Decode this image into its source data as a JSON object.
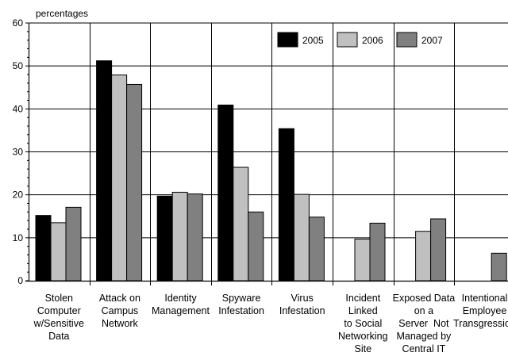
{
  "chart_data": {
    "type": "bar",
    "ylabel": "percentages",
    "ylim": [
      0,
      60
    ],
    "yticks": [
      "0",
      "10",
      "20",
      "30",
      "40",
      "50",
      "60"
    ],
    "legend_position": "top-right",
    "grid": "horizontal",
    "categories": [
      [
        "Stolen",
        "Computer",
        "w/Sensitive",
        "Data"
      ],
      [
        "Attack on",
        "Campus",
        "Network"
      ],
      [
        "Identity",
        "Management"
      ],
      [
        "Spyware",
        "Infestation"
      ],
      [
        "Virus",
        "Infestation"
      ],
      [
        "Incident",
        "Linked",
        "to Social",
        "Networking",
        "Site"
      ],
      [
        "Exposed Data",
        "on a",
        "Server  Not",
        "Managed by",
        "Central IT"
      ],
      [
        "Intentional",
        "Employee",
        "Transgression"
      ]
    ],
    "series": [
      {
        "name": "2005",
        "color": "#000000",
        "values": [
          15.2,
          51.2,
          19.7,
          40.9,
          35.4,
          null,
          null,
          null
        ]
      },
      {
        "name": "2006",
        "color": "#c0c0c0",
        "values": [
          13.5,
          47.9,
          20.6,
          26.4,
          20.1,
          9.7,
          11.5,
          null
        ]
      },
      {
        "name": "2007",
        "color": "#808080",
        "values": [
          17.1,
          45.7,
          20.2,
          16.0,
          14.8,
          13.4,
          14.4,
          6.4
        ]
      }
    ]
  }
}
